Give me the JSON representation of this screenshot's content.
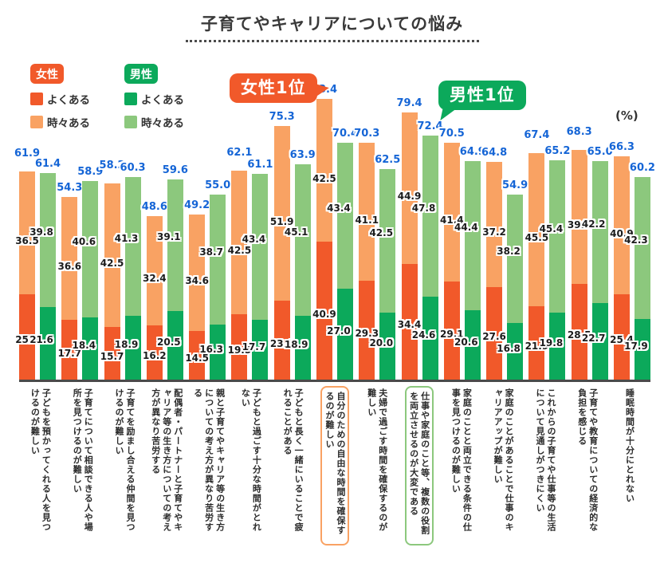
{
  "title": "子育てやキャリアについての悩み",
  "unit_label": "(%)",
  "legend": {
    "female": {
      "label": "女性",
      "often": "よくある",
      "sometimes": "時々ある"
    },
    "male": {
      "label": "男性",
      "often": "よくある",
      "sometimes": "時々ある"
    }
  },
  "callouts": {
    "female_top": "女性1位",
    "male_top": "男性1位"
  },
  "colors": {
    "female_often": "#F1592A",
    "female_sometimes": "#F9A263",
    "male_often": "#0CA95B",
    "male_sometimes": "#8CC87D",
    "total_label_blue": "#1565D6",
    "axis": "#4a4a4a"
  },
  "chart_data": {
    "type": "bar",
    "stacked": true,
    "title": "子育てやキャリアについての悩み",
    "ylabel": "(%)",
    "ylim": [
      0,
      90
    ],
    "legend_position": "top-left",
    "grid": false,
    "categories": [
      "子どもを預かってくれる人を見つけるのが難しい",
      "子育てについて相談できる人や場所を見つけるのが難しい",
      "子育てを励まし合える仲間を見つけるのが難しい",
      "配偶者・パートナーと子育てやキャリア等の生き方についての考え方が異なり苦労する",
      "親と子育てやキャリア等の生き方についての考え方が異なり苦労する",
      "子どもと過ごす十分な時間がとれない",
      "子どもと長く一緒にいることで疲れることがある",
      "自分のための自由な時間を確保するのが難しい",
      "夫婦で過ごす時間を確保するのが難しい",
      "仕事や家庭のこと等、複数の役割を両立させるのが大変である",
      "家庭のことと両立できる条件の仕事を見つけるのが難しい",
      "家庭のことがあることで仕事のキャリアアップが難しい",
      "これからの子育てや仕事等の生活について見通しがつきにくい",
      "子育てや教育についての経済的な負担を感じる",
      "睡眠時間が十分にとれない"
    ],
    "series": [
      {
        "name": "女性 よくある",
        "values": [
          25.4,
          17.7,
          15.7,
          16.2,
          14.5,
          19.5,
          23.4,
          40.9,
          29.3,
          34.4,
          29.1,
          27.6,
          21.9,
          28.5,
          25.4
        ]
      },
      {
        "name": "女性 時々ある",
        "values": [
          36.5,
          36.6,
          42.5,
          32.4,
          34.6,
          42.5,
          51.9,
          42.5,
          41.1,
          44.9,
          41.4,
          37.2,
          45.5,
          39.8,
          40.9
        ]
      },
      {
        "name": "男性 よくある",
        "values": [
          21.6,
          18.4,
          18.9,
          20.5,
          16.3,
          17.7,
          18.9,
          27.0,
          20.0,
          24.6,
          20.6,
          16.8,
          19.8,
          22.7,
          17.9
        ]
      },
      {
        "name": "男性 時々ある",
        "values": [
          39.8,
          40.6,
          41.3,
          39.1,
          38.7,
          43.4,
          45.1,
          43.4,
          42.5,
          47.8,
          44.4,
          38.2,
          45.4,
          42.2,
          42.3
        ]
      }
    ],
    "totals": {
      "female": [
        61.9,
        54.3,
        58.2,
        48.6,
        49.2,
        62.1,
        75.3,
        83.4,
        70.3,
        79.4,
        70.5,
        64.8,
        67.4,
        68.3,
        66.3
      ],
      "male": [
        61.4,
        58.9,
        60.3,
        59.6,
        55.0,
        61.1,
        63.9,
        70.4,
        62.5,
        72.4,
        64.9,
        54.9,
        65.2,
        65.0,
        60.2
      ]
    },
    "highlights": {
      "female_top_index": 7,
      "male_top_index": 9
    }
  }
}
